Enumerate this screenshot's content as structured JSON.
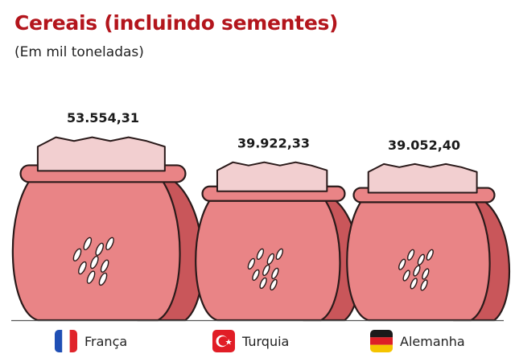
{
  "title": "Cereais (incluindo sementes)",
  "subtitle": "(Em mil toneladas)",
  "colors": {
    "title": "#b3151c",
    "sack_body": "#e98486",
    "sack_back": "#c9565a",
    "grain_top": "#f2cfd0",
    "outline": "#2a1a1a"
  },
  "chart_data": {
    "type": "bar",
    "title": "Cereais (incluindo sementes)",
    "subtitle": "(Em mil toneladas)",
    "categories": [
      "França",
      "Turquia",
      "Alemanha"
    ],
    "values": [
      53554.31,
      39922.33,
      39052.4
    ],
    "value_labels": [
      "53.554,31",
      "39.922,33",
      "39.052,40"
    ],
    "flags": [
      "france-flag-icon",
      "turkey-flag-icon",
      "germany-flag-icon"
    ],
    "mark": "grain-sack-icon"
  }
}
